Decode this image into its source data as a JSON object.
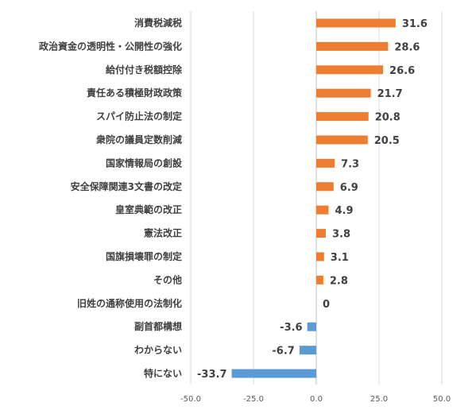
{
  "chart_data": {
    "type": "bar",
    "orientation": "horizontal",
    "categories": [
      "消費税減税",
      "政治資金の透明性・公開性の強化",
      "給付付き税額控除",
      "責任ある積極財政政策",
      "スパイ防止法の制定",
      "衆院の議員定数削減",
      "国家情報局の創設",
      "安全保障関連3文書の改定",
      "皇室典範の改正",
      "憲法改正",
      "国旗損壊罪の制定",
      "その他",
      "旧姓の通称使用の法制化",
      "副首都構想",
      "わからない",
      "特にない"
    ],
    "values": [
      31.6,
      28.6,
      26.6,
      21.7,
      20.8,
      20.5,
      7.3,
      6.9,
      4.9,
      3.8,
      3.1,
      2.8,
      0,
      -3.6,
      -6.7,
      -33.7
    ],
    "value_labels": [
      "31.6",
      "28.6",
      "26.6",
      "21.7",
      "20.8",
      "20.5",
      "7.3",
      "6.9",
      "4.9",
      "3.8",
      "3.1",
      "2.8",
      "0",
      "-3.6",
      "-6.7",
      "-33.7"
    ],
    "xlim": [
      -50,
      50
    ],
    "xticks": [
      -50,
      -25,
      0,
      25,
      50
    ],
    "xtick_labels": [
      "-50.0",
      "-25.0",
      "0.0",
      "25.0",
      "50.0"
    ],
    "grid": true,
    "colors": {
      "positive": "#ed7d31",
      "negative": "#5b9bd5"
    }
  }
}
